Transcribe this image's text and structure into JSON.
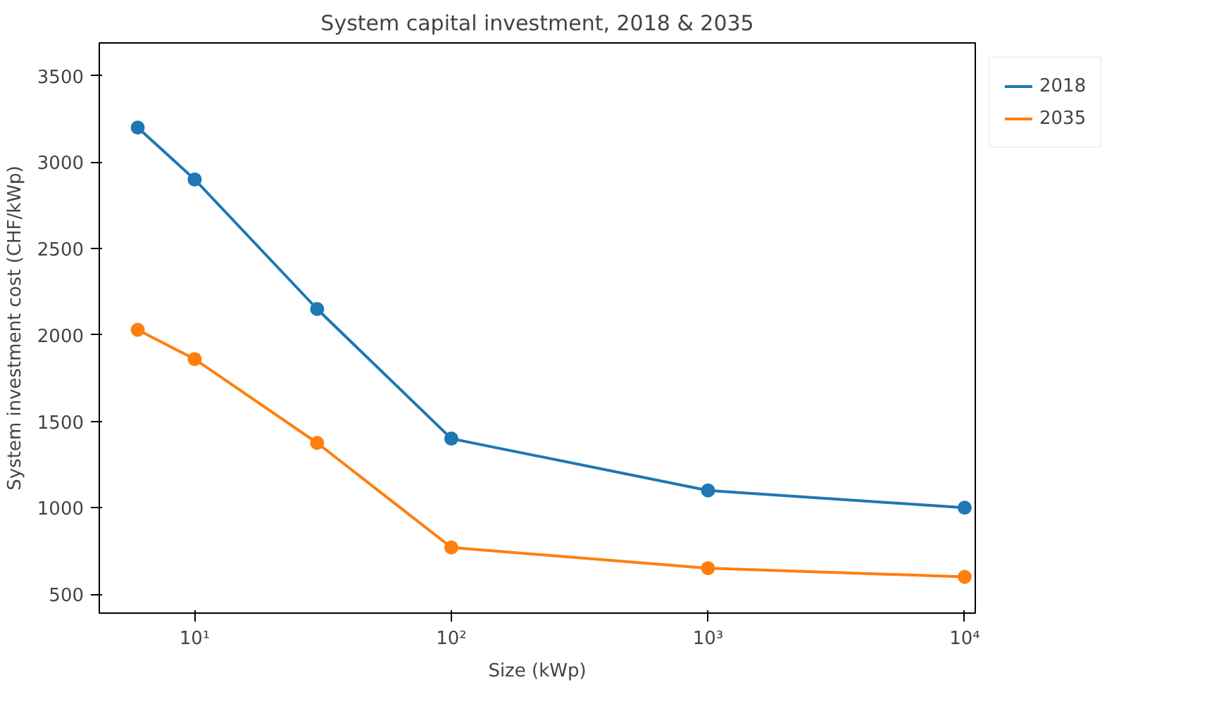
{
  "chart_data": {
    "type": "line",
    "title": "System capital investment, 2018 & 2035",
    "xlabel": "Size (kWp)",
    "ylabel": "System investment cost (CHF/kWp)",
    "x": [
      6,
      10,
      30,
      100,
      1000,
      10000
    ],
    "series": [
      {
        "name": "2018",
        "color": "#1f77b4",
        "values": [
          3200,
          2900,
          2150,
          1400,
          1100,
          1000
        ]
      },
      {
        "name": "2035",
        "color": "#ff7f0e",
        "values": [
          2030,
          1860,
          1375,
          770,
          650,
          600
        ]
      }
    ],
    "log": "x",
    "xlim": [
      4.25,
      11000
    ],
    "ylim": [
      390,
      3690
    ],
    "xticks": [
      {
        "value": 10,
        "label": "10¹"
      },
      {
        "value": 100,
        "label": "10²"
      },
      {
        "value": 1000,
        "label": "10³"
      },
      {
        "value": 10000,
        "label": "10⁴"
      }
    ],
    "yticks": [
      500,
      1000,
      1500,
      2000,
      2500,
      3000,
      3500
    ],
    "marker": "circle",
    "line_style": "solid",
    "grid": false,
    "legend": "top right"
  }
}
